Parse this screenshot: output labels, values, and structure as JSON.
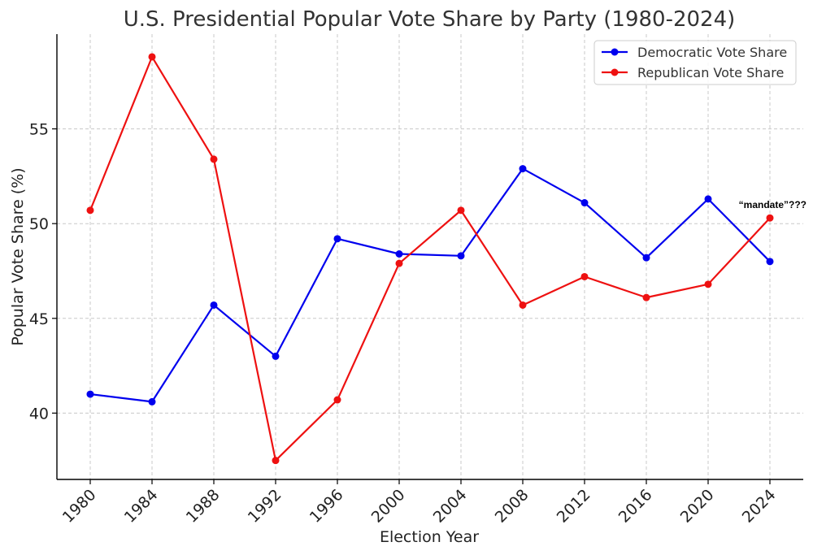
{
  "chart_data": {
    "type": "line",
    "title": "U.S. Presidential Popular Vote Share by Party (1980-2024)",
    "xlabel": "Election Year",
    "ylabel": "Popular Vote Share (%)",
    "x": [
      "1980",
      "1984",
      "1988",
      "1992",
      "1996",
      "2000",
      "2004",
      "2008",
      "2012",
      "2016",
      "2020",
      "2024"
    ],
    "ylim": [
      36.5,
      60.0
    ],
    "yticks": [
      40,
      45,
      50,
      55
    ],
    "grid": true,
    "legend_position": "top-right",
    "series": [
      {
        "name": "Democratic Vote Share",
        "color": "#0000ee",
        "values": [
          41.0,
          40.6,
          45.7,
          43.0,
          49.2,
          48.4,
          48.3,
          52.9,
          51.1,
          48.2,
          51.3,
          48.0
        ]
      },
      {
        "name": "Republican Vote Share",
        "color": "#ee1111",
        "values": [
          50.7,
          58.8,
          53.4,
          37.5,
          40.7,
          47.9,
          50.7,
          45.7,
          47.2,
          46.1,
          46.8,
          50.3
        ]
      }
    ],
    "annotations": [
      {
        "text": "“mandate”???",
        "x": "2024",
        "y": 51.0
      }
    ]
  }
}
